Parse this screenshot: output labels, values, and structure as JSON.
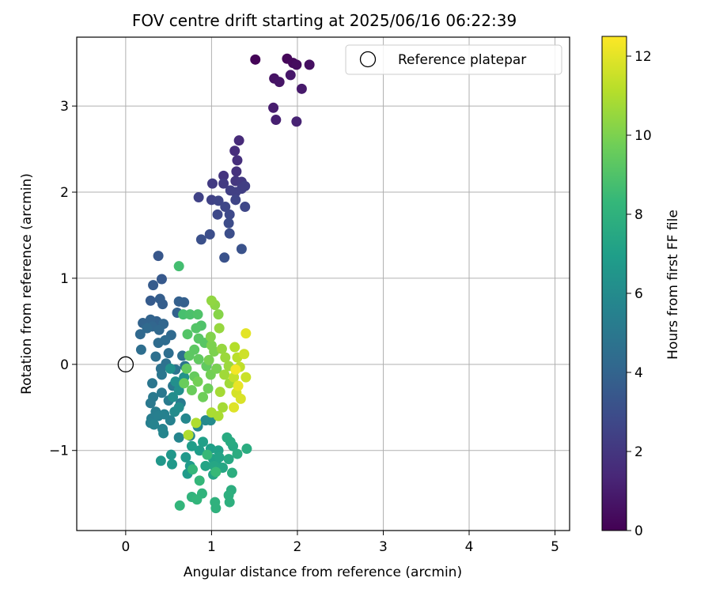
{
  "chart_data": {
    "type": "scatter",
    "title": "FOV centre drift starting at 2025/06/16 06:22:39",
    "xlabel": "Angular distance from reference (arcmin)",
    "ylabel": "Rotation from reference (arcmin)",
    "xlim": [
      -0.57,
      5.17
    ],
    "ylim": [
      -1.93,
      3.8
    ],
    "xticks": [
      0,
      1,
      2,
      3,
      4,
      5
    ],
    "xtick_labels": [
      "0",
      "1",
      "2",
      "3",
      "4",
      "5"
    ],
    "yticks": [
      -1,
      0,
      1,
      2,
      3
    ],
    "ytick_labels": [
      "−1",
      "0",
      "1",
      "2",
      "3"
    ],
    "grid": true,
    "legend": {
      "position": "top-right",
      "entries": [
        {
          "label": "Reference platepar",
          "marker": "open-circle"
        }
      ]
    },
    "reference_point": {
      "x": 0,
      "y": 0
    },
    "colorbar": {
      "label": "Hours from first FF file",
      "colormap": "viridis",
      "range": [
        0,
        12.5
      ],
      "ticks": [
        0,
        2,
        4,
        6,
        8,
        10,
        12
      ],
      "tick_labels": [
        "0",
        "2",
        "4",
        "6",
        "8",
        "10",
        "12"
      ]
    },
    "colormap_stops": [
      "#440154",
      "#482878",
      "#3e4989",
      "#31688e",
      "#26828e",
      "#1f9e89",
      "#35b779",
      "#6ece58",
      "#b5de2b",
      "#fde725"
    ],
    "points": [
      [
        1.51,
        3.54,
        0.1
      ],
      [
        1.88,
        3.55,
        0.2
      ],
      [
        1.95,
        3.5,
        0.3
      ],
      [
        1.99,
        3.48,
        0.4
      ],
      [
        2.14,
        3.48,
        0.5
      ],
      [
        1.73,
        3.32,
        0.6
      ],
      [
        1.79,
        3.28,
        0.7
      ],
      [
        1.92,
        3.36,
        0.8
      ],
      [
        2.05,
        3.2,
        0.9
      ],
      [
        1.72,
        2.98,
        1.0
      ],
      [
        1.75,
        2.84,
        1.1
      ],
      [
        1.99,
        2.82,
        1.2
      ],
      [
        1.32,
        2.6,
        1.5
      ],
      [
        1.27,
        2.48,
        1.6
      ],
      [
        1.3,
        2.37,
        1.7
      ],
      [
        1.29,
        2.24,
        1.8
      ],
      [
        1.14,
        2.19,
        1.9
      ],
      [
        1.28,
        2.13,
        2.0
      ],
      [
        1.35,
        2.12,
        2.1
      ],
      [
        1.14,
        2.1,
        2.2
      ],
      [
        1.01,
        2.1,
        2.2
      ],
      [
        1.39,
        2.07,
        2.3
      ],
      [
        1.35,
        2.04,
        2.3
      ],
      [
        1.22,
        2.02,
        2.4
      ],
      [
        1.28,
        2.0,
        2.4
      ],
      [
        0.85,
        1.94,
        2.5
      ],
      [
        1.0,
        1.91,
        2.5
      ],
      [
        1.08,
        1.9,
        2.6
      ],
      [
        1.28,
        1.91,
        2.6
      ],
      [
        1.16,
        1.83,
        2.7
      ],
      [
        1.39,
        1.83,
        2.7
      ],
      [
        1.07,
        1.74,
        2.8
      ],
      [
        1.21,
        1.74,
        2.8
      ],
      [
        1.2,
        1.64,
        2.9
      ],
      [
        1.21,
        1.52,
        3.0
      ],
      [
        0.98,
        1.51,
        3.0
      ],
      [
        0.88,
        1.45,
        3.1
      ],
      [
        1.35,
        1.34,
        3.2
      ],
      [
        1.15,
        1.24,
        3.2
      ],
      [
        0.38,
        1.26,
        3.4
      ],
      [
        0.42,
        0.99,
        3.5
      ],
      [
        0.32,
        0.92,
        3.6
      ],
      [
        0.29,
        0.74,
        3.6
      ],
      [
        0.4,
        0.76,
        3.7
      ],
      [
        0.43,
        0.7,
        3.7
      ],
      [
        0.62,
        0.73,
        3.8
      ],
      [
        0.68,
        0.72,
        3.8
      ],
      [
        0.6,
        0.6,
        3.9
      ],
      [
        0.36,
        0.5,
        3.9
      ],
      [
        0.29,
        0.52,
        4.0
      ],
      [
        0.2,
        0.48,
        4.0
      ],
      [
        0.44,
        0.47,
        4.1
      ],
      [
        0.31,
        0.44,
        4.1
      ],
      [
        0.17,
        0.35,
        4.2
      ],
      [
        0.39,
        0.4,
        4.2
      ],
      [
        0.25,
        0.42,
        4.3
      ],
      [
        0.53,
        0.34,
        4.3
      ],
      [
        0.46,
        0.28,
        4.4
      ],
      [
        0.38,
        0.25,
        4.4
      ],
      [
        0.18,
        0.17,
        4.5
      ],
      [
        0.5,
        0.13,
        4.5
      ],
      [
        0.66,
        0.1,
        4.6
      ],
      [
        0.35,
        0.09,
        4.6
      ],
      [
        0.47,
        0.01,
        4.7
      ],
      [
        0.41,
        -0.05,
        4.7
      ],
      [
        0.58,
        -0.06,
        4.8
      ],
      [
        0.69,
        -0.02,
        4.8
      ],
      [
        0.42,
        -0.12,
        4.9
      ],
      [
        0.31,
        -0.22,
        4.9
      ],
      [
        0.55,
        -0.25,
        5.0
      ],
      [
        0.42,
        -0.33,
        5.0
      ],
      [
        0.32,
        -0.38,
        5.1
      ],
      [
        0.29,
        -0.45,
        5.1
      ],
      [
        0.5,
        -0.42,
        5.2
      ],
      [
        0.64,
        -0.45,
        5.2
      ],
      [
        0.35,
        -0.55,
        5.3
      ],
      [
        0.3,
        -0.63,
        5.3
      ],
      [
        0.38,
        -0.6,
        5.4
      ],
      [
        0.29,
        -0.68,
        5.4
      ],
      [
        0.52,
        -0.65,
        5.5
      ],
      [
        0.45,
        -0.58,
        5.5
      ],
      [
        0.33,
        -0.7,
        5.6
      ],
      [
        0.43,
        -0.75,
        5.6
      ],
      [
        0.44,
        -0.8,
        5.7
      ],
      [
        0.62,
        -0.85,
        5.7
      ],
      [
        0.75,
        -0.83,
        5.8
      ],
      [
        0.7,
        -0.63,
        5.8
      ],
      [
        0.93,
        -0.65,
        5.9
      ],
      [
        0.84,
        -0.72,
        5.9
      ],
      [
        0.99,
        -0.65,
        6.0
      ],
      [
        0.57,
        -0.55,
        6.0
      ],
      [
        0.62,
        -0.5,
        6.1
      ],
      [
        0.55,
        -0.38,
        6.1
      ],
      [
        0.62,
        -0.3,
        6.2
      ],
      [
        0.58,
        -0.2,
        6.2
      ],
      [
        0.68,
        -0.15,
        6.3
      ],
      [
        0.52,
        -0.05,
        6.3
      ],
      [
        0.41,
        -1.12,
        6.6
      ],
      [
        0.53,
        -1.05,
        6.6
      ],
      [
        0.54,
        -1.16,
        6.7
      ],
      [
        0.7,
        -1.08,
        6.7
      ],
      [
        0.75,
        -1.18,
        6.8
      ],
      [
        0.72,
        -1.27,
        6.8
      ],
      [
        0.86,
        -1.0,
        6.9
      ],
      [
        0.77,
        -0.95,
        6.9
      ],
      [
        0.9,
        -0.9,
        7.0
      ],
      [
        0.99,
        -0.98,
        7.0
      ],
      [
        1.02,
        -1.1,
        7.1
      ],
      [
        1.08,
        -1.0,
        7.1
      ],
      [
        1.09,
        -1.08,
        7.2
      ],
      [
        1.07,
        -1.18,
        7.2
      ],
      [
        0.93,
        -1.18,
        7.3
      ],
      [
        1.02,
        -1.28,
        7.3
      ],
      [
        1.13,
        -1.2,
        7.4
      ],
      [
        1.03,
        -1.18,
        7.4
      ],
      [
        1.2,
        -1.1,
        7.5
      ],
      [
        1.25,
        -0.95,
        7.5
      ],
      [
        1.22,
        -0.9,
        7.6
      ],
      [
        1.18,
        -0.85,
        7.6
      ],
      [
        1.3,
        -1.04,
        7.7
      ],
      [
        1.41,
        -0.98,
        7.7
      ],
      [
        1.24,
        -1.26,
        7.8
      ],
      [
        1.23,
        -1.46,
        7.8
      ],
      [
        1.2,
        -1.52,
        7.9
      ],
      [
        1.21,
        -1.6,
        7.9
      ],
      [
        1.04,
        -1.6,
        8.0
      ],
      [
        1.05,
        -1.67,
        8.0
      ],
      [
        0.89,
        -1.5,
        8.1
      ],
      [
        0.77,
        -1.54,
        8.1
      ],
      [
        0.83,
        -1.57,
        8.2
      ],
      [
        0.63,
        -1.64,
        8.2
      ],
      [
        0.86,
        -1.35,
        8.3
      ],
      [
        0.78,
        -1.22,
        8.3
      ],
      [
        1.05,
        -1.25,
        8.4
      ],
      [
        0.95,
        -1.05,
        8.4
      ],
      [
        0.62,
        1.14,
        8.7
      ],
      [
        0.67,
        0.58,
        8.8
      ],
      [
        0.75,
        0.58,
        8.9
      ],
      [
        0.84,
        0.58,
        9.0
      ],
      [
        0.88,
        0.45,
        9.0
      ],
      [
        0.82,
        0.42,
        9.1
      ],
      [
        0.72,
        0.35,
        9.1
      ],
      [
        0.85,
        0.3,
        9.2
      ],
      [
        0.92,
        0.25,
        9.2
      ],
      [
        0.8,
        0.17,
        9.3
      ],
      [
        0.74,
        0.1,
        9.3
      ],
      [
        0.85,
        0.06,
        9.4
      ],
      [
        0.94,
        -0.02,
        9.4
      ],
      [
        0.71,
        -0.05,
        9.5
      ],
      [
        0.8,
        -0.14,
        9.5
      ],
      [
        0.68,
        -0.22,
        9.6
      ],
      [
        0.77,
        -0.3,
        9.6
      ],
      [
        0.9,
        -0.38,
        9.7
      ],
      [
        0.96,
        -0.28,
        9.7
      ],
      [
        0.84,
        -0.2,
        9.8
      ],
      [
        0.99,
        -0.12,
        9.8
      ],
      [
        1.06,
        -0.05,
        9.9
      ],
      [
        0.97,
        0.05,
        9.9
      ],
      [
        1.03,
        0.15,
        10.0
      ],
      [
        1.0,
        0.22,
        10.0
      ],
      [
        0.99,
        0.32,
        10.1
      ],
      [
        1.08,
        0.58,
        10.2
      ],
      [
        1.04,
        0.69,
        10.3
      ],
      [
        1.0,
        0.74,
        10.4
      ],
      [
        1.09,
        0.42,
        10.5
      ],
      [
        1.12,
        0.18,
        10.5
      ],
      [
        1.16,
        0.08,
        10.6
      ],
      [
        1.2,
        -0.02,
        10.6
      ],
      [
        1.15,
        -0.12,
        10.7
      ],
      [
        1.21,
        -0.22,
        10.7
      ],
      [
        1.1,
        -0.32,
        10.8
      ],
      [
        1.13,
        -0.5,
        10.8
      ],
      [
        1.0,
        -0.56,
        10.9
      ],
      [
        1.08,
        -0.6,
        10.9
      ],
      [
        0.82,
        -0.68,
        11.0
      ],
      [
        0.73,
        -0.82,
        11.0
      ],
      [
        1.27,
        0.2,
        11.1
      ],
      [
        1.3,
        0.08,
        11.2
      ],
      [
        1.33,
        -0.03,
        11.3
      ],
      [
        1.26,
        -0.15,
        11.4
      ],
      [
        1.4,
        -0.15,
        11.5
      ],
      [
        1.38,
        0.12,
        11.6
      ],
      [
        1.29,
        -0.33,
        11.7
      ],
      [
        1.34,
        -0.4,
        11.8
      ],
      [
        1.26,
        -0.5,
        11.9
      ],
      [
        1.4,
        0.36,
        12.0
      ],
      [
        1.31,
        -0.25,
        12.1
      ],
      [
        1.28,
        -0.06,
        12.3
      ]
    ]
  }
}
